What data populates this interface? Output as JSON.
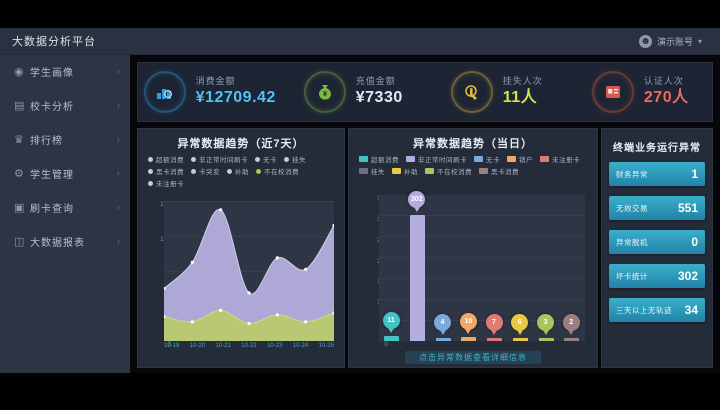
{
  "navbar": {
    "title": "大数据分析平台",
    "user": "演示账号",
    "caret": "▾"
  },
  "sidebar": {
    "items": [
      {
        "label": "学生画像",
        "icon": "student-portrait"
      },
      {
        "label": "校卡分析",
        "icon": "card-analysis"
      },
      {
        "label": "排行榜",
        "icon": "ranking"
      },
      {
        "label": "学生管理",
        "icon": "student-management"
      },
      {
        "label": "刷卡查询",
        "icon": "swipe-query"
      },
      {
        "label": "大数据报表",
        "icon": "bigdata-report"
      }
    ]
  },
  "kpis": [
    {
      "label": "消费金额",
      "value": "¥12709.42",
      "value_color": "#4fc3f7",
      "ring_color": "#2f9fd8",
      "icon": "coin-stack"
    },
    {
      "label": "充值金额",
      "value": "¥7330",
      "value_color": "#e2ebf3",
      "ring_color": "#7cb93e",
      "icon": "money-bag"
    },
    {
      "label": "挂失人次",
      "value": "11人",
      "value_color": "#d8e24e",
      "ring_color": "#e0b93f",
      "icon": "hand-click"
    },
    {
      "label": "认证人次",
      "value": "270人",
      "value_color": "#ef6a5e",
      "ring_color": "#d95a4a",
      "icon": "id-card"
    }
  ],
  "weekly_panel": {
    "title": "异常数据趋势（近7天）",
    "legend_rows": [
      [
        {
          "label": "超额消费",
          "dot": "#c3ccd8"
        },
        {
          "label": "非正常时间刷卡",
          "dot": "#c3ccd8"
        },
        {
          "label": "无卡",
          "dot": "#c3ccd8"
        },
        {
          "label": "挂失",
          "dot": "#c3ccd8"
        }
      ],
      [
        {
          "label": "黑卡消费",
          "dot": "#c3ccd8"
        },
        {
          "label": "卡突变",
          "dot": "#c3ccd8"
        },
        {
          "label": "补助",
          "dot": "#c3ccd8"
        },
        {
          "label": "不在校消费",
          "dot": "#a8c65a"
        }
      ],
      [
        {
          "label": "未注册卡",
          "dot": "#c3ccd8"
        }
      ]
    ]
  },
  "daily_panel": {
    "title": "异常数据趋势（当日）",
    "caption": "点击异常数据查看详细信息",
    "legend_rows": [
      [
        {
          "label": "超额消费",
          "sq": "#45c2c5"
        },
        {
          "label": "非正常时间刷卡",
          "sq": "#b4aede"
        },
        {
          "label": "无卡",
          "sq": "#7aa9dc"
        },
        {
          "label": "销户",
          "sq": "#f0a868"
        },
        {
          "label": "未注册卡",
          "sq": "#e07b74"
        }
      ],
      [
        {
          "label": "挂失",
          "sq": "#6b7280"
        },
        {
          "label": "补助",
          "sq": "#e8c944"
        },
        {
          "label": "不在校消费",
          "sq": "#a4c65c"
        },
        {
          "label": "黑卡消费",
          "sq": "#9c8080"
        }
      ]
    ]
  },
  "terminal_panel": {
    "title": "终端业务运行异常",
    "items": [
      {
        "label": "财务异常",
        "value": "1"
      },
      {
        "label": "无效交易",
        "value": "551"
      },
      {
        "label": "异常脱机",
        "value": "0"
      },
      {
        "label": "坏卡统计",
        "value": "302"
      },
      {
        "label": "三天以上无轨迹",
        "value": "34"
      }
    ]
  },
  "chart_data": [
    {
      "type": "area",
      "title": "异常数据趋势（近7天）",
      "x": [
        "10-19",
        "10-20",
        "10-21",
        "10-22",
        "10-23",
        "10-24",
        "10-25"
      ],
      "series": [
        {
          "name": "非正常时间刷卡",
          "color": "#b3addc",
          "line": "#d4cff0",
          "values": [
            60,
            90,
            150,
            55,
            95,
            82,
            132
          ]
        },
        {
          "name": "不在校消费",
          "color": "#b9c96e",
          "line": "#ccd98a",
          "values": [
            28,
            22,
            35,
            20,
            30,
            22,
            32
          ]
        }
      ],
      "ylim": [
        0,
        160
      ],
      "yticks": [
        0,
        40,
        80,
        120,
        160
      ],
      "legend_position": "top",
      "grid": true
    },
    {
      "type": "bar",
      "title": "异常数据趋势（当日）",
      "categories": [
        "超额消费",
        "非正常时间刷卡",
        "无卡",
        "销户",
        "未注册卡",
        "补助",
        "不在校消费",
        "黑卡消费"
      ],
      "values": [
        11,
        302,
        4,
        10,
        7,
        6,
        3,
        2
      ],
      "colors": [
        "#45c2c5",
        "#b4aede",
        "#7aa9dc",
        "#f0a868",
        "#e07b74",
        "#e8c944",
        "#a4c65c",
        "#9c8080"
      ],
      "ylim": [
        0,
        350
      ],
      "yticks": [
        0,
        50,
        100,
        150,
        200,
        250,
        300,
        350
      ],
      "legend_position": "top",
      "grid": true
    }
  ]
}
